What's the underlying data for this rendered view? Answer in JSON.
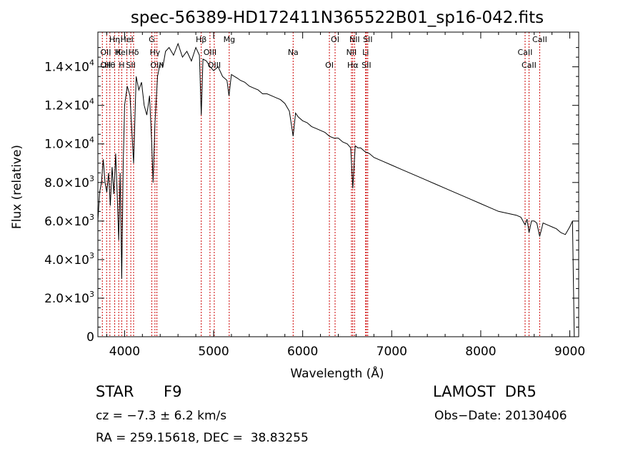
{
  "chart_data": {
    "type": "line",
    "title": "spec-56389-HD172411N365522B01_sp16-042.fits",
    "xlabel": "Wavelength (Å)",
    "ylabel": "Flux (relative)",
    "xlim": [
      3700,
      9100
    ],
    "ylim": [
      0,
      15800
    ],
    "x_ticks": [
      4000,
      5000,
      6000,
      7000,
      8000,
      9000
    ],
    "x_tick_labels": [
      "4000",
      "5000",
      "6000",
      "7000",
      "8000",
      "9000"
    ],
    "y_ticks": [
      0,
      2000,
      4000,
      6000,
      8000,
      10000,
      12000,
      14000
    ],
    "y_tick_labels": [
      {
        "mant": "0",
        "exp": ""
      },
      {
        "mant": "2.0×10",
        "exp": "3"
      },
      {
        "mant": "4.0×10",
        "exp": "3"
      },
      {
        "mant": "6.0×10",
        "exp": "3"
      },
      {
        "mant": "8.0×10",
        "exp": "3"
      },
      {
        "mant": "1.0×10",
        "exp": "4"
      },
      {
        "mant": "1.2×10",
        "exp": "4"
      },
      {
        "mant": "1.4×10",
        "exp": "4"
      }
    ],
    "grid": false,
    "spectrum_color": "#000000",
    "line_marker_color": "#cc0000",
    "spectrum": {
      "x": [
        3700,
        3720,
        3740,
        3760,
        3780,
        3800,
        3820,
        3840,
        3860,
        3880,
        3900,
        3920,
        3934,
        3950,
        3968,
        3985,
        4000,
        4030,
        4060,
        4101,
        4130,
        4160,
        4190,
        4220,
        4250,
        4280,
        4305,
        4320,
        4340,
        4370,
        4400,
        4430,
        4460,
        4500,
        4550,
        4600,
        4650,
        4700,
        4750,
        4800,
        4840,
        4861,
        4880,
        4920,
        4960,
        5000,
        5050,
        5100,
        5150,
        5172,
        5200,
        5270,
        5300,
        5350,
        5400,
        5450,
        5500,
        5550,
        5600,
        5650,
        5700,
        5750,
        5800,
        5850,
        5893,
        5920,
        5950,
        6000,
        6050,
        6100,
        6150,
        6200,
        6250,
        6300,
        6350,
        6400,
        6450,
        6500,
        6540,
        6563,
        6590,
        6620,
        6650,
        6700,
        6750,
        6800,
        6900,
        7000,
        7100,
        7200,
        7300,
        7400,
        7500,
        7600,
        7700,
        7800,
        7900,
        8000,
        8100,
        8200,
        8300,
        8400,
        8450,
        8498,
        8520,
        8542,
        8570,
        8600,
        8630,
        8662,
        8700,
        8750,
        8800,
        8850,
        8900,
        8950,
        9000,
        9030,
        9050
      ],
      "y": [
        6000,
        7500,
        8000,
        9200,
        8000,
        7500,
        8500,
        6800,
        8800,
        7400,
        9500,
        7000,
        5000,
        8500,
        3000,
        9000,
        12000,
        13000,
        12500,
        9000,
        13500,
        12800,
        13200,
        12000,
        11500,
        12500,
        10000,
        8000,
        11000,
        13500,
        14200,
        14000,
        14800,
        15000,
        14600,
        15200,
        14500,
        14800,
        14300,
        15000,
        14600,
        11500,
        14400,
        14300,
        14000,
        13800,
        14000,
        13500,
        13300,
        12500,
        13600,
        13400,
        13300,
        13200,
        13000,
        12900,
        12800,
        12600,
        12600,
        12500,
        12400,
        12300,
        12100,
        11700,
        10400,
        11600,
        11400,
        11200,
        11100,
        10900,
        10800,
        10700,
        10600,
        10400,
        10300,
        10300,
        10100,
        10000,
        9800,
        7700,
        9900,
        9800,
        9800,
        9600,
        9500,
        9300,
        9100,
        8900,
        8700,
        8500,
        8300,
        8100,
        7900,
        7700,
        7500,
        7300,
        7100,
        6900,
        6700,
        6500,
        6400,
        6300,
        6200,
        5800,
        6100,
        5400,
        6000,
        6000,
        5900,
        5200,
        5900,
        5800,
        5700,
        5600,
        5400,
        5300,
        5700,
        6000,
        0
      ]
    },
    "lines": [
      {
        "x": 3750,
        "labels": []
      },
      {
        "x": 3798,
        "labels": []
      },
      {
        "x": 3835,
        "labels": [
          "Hθ"
        ]
      },
      {
        "x": 3889,
        "labels": [
          "Hη"
        ]
      },
      {
        "x": 3934,
        "labels": [
          "K"
        ]
      },
      {
        "x": 3968,
        "labels": [
          "H"
        ]
      },
      {
        "x": 4026,
        "labels": [
          "HeI"
        ]
      },
      {
        "x": 4101,
        "labels": [
          "Hδ"
        ]
      },
      {
        "x": 4070,
        "labels": [
          "SII"
        ]
      },
      {
        "x": 4305,
        "labels": [
          "G"
        ]
      },
      {
        "x": 4341,
        "labels": [
          "Hγ"
        ]
      },
      {
        "x": 4363,
        "labels": [
          "OIII"
        ]
      },
      {
        "x": 4861,
        "labels": [
          "Hβ"
        ]
      },
      {
        "x": 4959,
        "labels": [
          "OIII"
        ]
      },
      {
        "x": 5007,
        "labels": [
          "OIII"
        ]
      },
      {
        "x": 5175,
        "labels": [
          "Mg"
        ]
      },
      {
        "x": 5893,
        "labels": [
          "Na"
        ]
      },
      {
        "x": 6300,
        "labels": [
          "OI"
        ]
      },
      {
        "x": 6364,
        "labels": [
          "OI"
        ]
      },
      {
        "x": 6548,
        "labels": [
          "NII"
        ]
      },
      {
        "x": 6563,
        "labels": [
          "Hα"
        ]
      },
      {
        "x": 6583,
        "labels": [
          "NII"
        ]
      },
      {
        "x": 6707,
        "labels": [
          "Li"
        ]
      },
      {
        "x": 6716,
        "labels": [
          "SII"
        ]
      },
      {
        "x": 6731,
        "labels": [
          "SII"
        ]
      },
      {
        "x": 8498,
        "labels": [
          "CaII"
        ]
      },
      {
        "x": 8542,
        "labels": [
          "CaII"
        ]
      },
      {
        "x": 8662,
        "labels": [
          "CaII"
        ]
      }
    ],
    "extra_labels": [
      {
        "text": "OII",
        "x": 3727,
        "row": 2
      },
      {
        "text": "OII",
        "x": 3727,
        "row": 3
      },
      {
        "text": "HeI",
        "x": 3890,
        "row": 2
      }
    ]
  },
  "info": {
    "class": "STAR",
    "subclass": "F9",
    "survey": "LAMOST  DR5",
    "cz": "cz = −7.3 ± 6.2 km/s",
    "obs_date": "Obs−Date: 20130406",
    "radec": "RA = 259.15618, DEC =  38.83255"
  }
}
